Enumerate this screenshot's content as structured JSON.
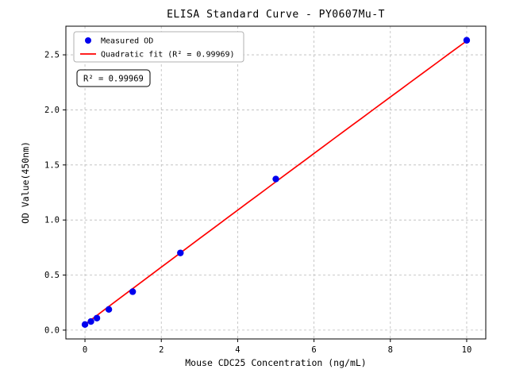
{
  "chart_data": {
    "type": "scatter",
    "title": "ELISA Standard Curve - PY0607Mu-T",
    "xlabel": "Mouse CDC25 Concentration (ng/mL)",
    "ylabel": "OD Value(450nm)",
    "xlim": [
      -0.5,
      10.5
    ],
    "ylim": [
      -0.08,
      2.76
    ],
    "xticks": [
      0,
      2,
      4,
      6,
      8,
      10
    ],
    "yticks": [
      0.0,
      0.5,
      1.0,
      1.5,
      2.0,
      2.5
    ],
    "grid": true,
    "grid_style": "dashed",
    "colors": {
      "points": "#0000ee",
      "fit_line": "#ff0000",
      "grid": "#bbbbbb",
      "axis": "#000000",
      "legend_border": "#b0b0b0",
      "annotation_border": "#000000",
      "background": "#ffffff"
    },
    "series": [
      {
        "name": "Measured OD",
        "type": "scatter",
        "color": "#0000ee",
        "points": [
          [
            0,
            0.051
          ],
          [
            0.156,
            0.078
          ],
          [
            0.3125,
            0.109
          ],
          [
            0.625,
            0.188
          ],
          [
            1.25,
            0.349
          ],
          [
            2.5,
            0.701
          ],
          [
            5,
            1.372
          ],
          [
            10,
            2.632
          ]
        ]
      },
      {
        "name": "Quadratic fit",
        "type": "line",
        "color": "#ff0000",
        "fit": {
          "a": -0.0003,
          "b": 0.2605,
          "c": 0.052
        },
        "x_range": [
          0,
          10
        ]
      }
    ],
    "legend": {
      "position": "upper-left",
      "items": [
        {
          "label": "Measured OD",
          "marker": "point",
          "color": "#0000ee"
        },
        {
          "label": "Quadratic fit (R² = 0.99969)",
          "marker": "line",
          "color": "#ff0000"
        }
      ]
    },
    "annotation": {
      "text": "R² = 0.99969"
    },
    "r_squared": 0.99969
  }
}
